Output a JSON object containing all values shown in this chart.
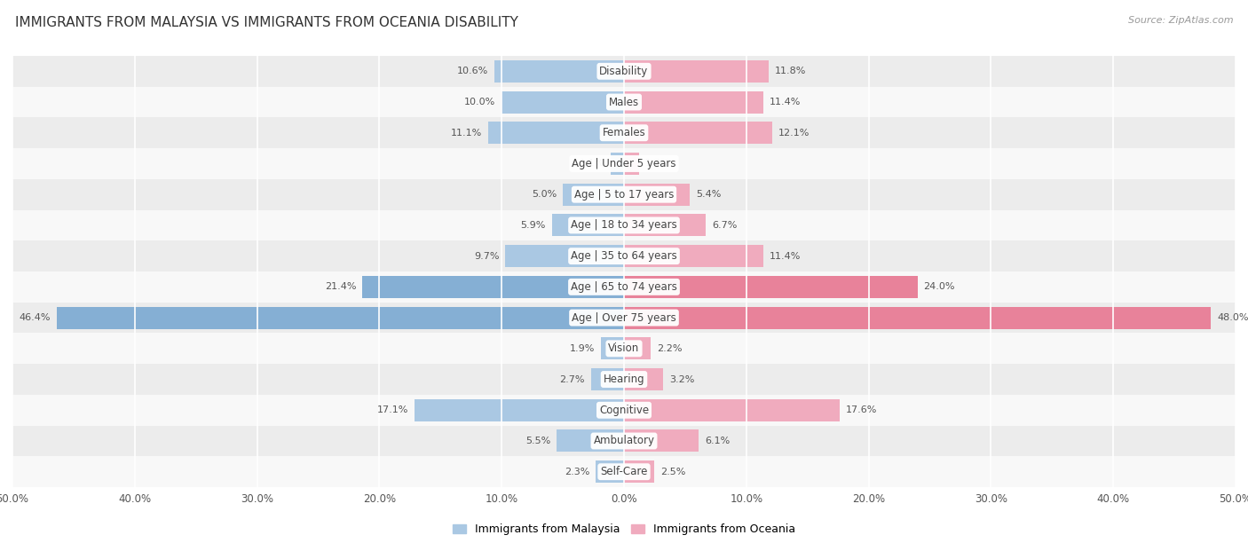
{
  "title": "IMMIGRANTS FROM MALAYSIA VS IMMIGRANTS FROM OCEANIA DISABILITY",
  "source": "Source: ZipAtlas.com",
  "categories": [
    "Disability",
    "Males",
    "Females",
    "Age | Under 5 years",
    "Age | 5 to 17 years",
    "Age | 18 to 34 years",
    "Age | 35 to 64 years",
    "Age | 65 to 74 years",
    "Age | Over 75 years",
    "Vision",
    "Hearing",
    "Cognitive",
    "Ambulatory",
    "Self-Care"
  ],
  "malaysia_values": [
    10.6,
    10.0,
    11.1,
    1.1,
    5.0,
    5.9,
    9.7,
    21.4,
    46.4,
    1.9,
    2.7,
    17.1,
    5.5,
    2.3
  ],
  "oceania_values": [
    11.8,
    11.4,
    12.1,
    1.2,
    5.4,
    6.7,
    11.4,
    24.0,
    48.0,
    2.2,
    3.2,
    17.6,
    6.1,
    2.5
  ],
  "malaysia_color": "#85afd4",
  "oceania_color": "#e8829a",
  "malaysia_color_light": "#aac8e3",
  "oceania_color_light": "#f0abbe",
  "malaysia_label": "Immigrants from Malaysia",
  "oceania_label": "Immigrants from Oceania",
  "axis_max": 50.0,
  "title_fontsize": 11,
  "label_fontsize": 8.5,
  "value_fontsize": 8
}
